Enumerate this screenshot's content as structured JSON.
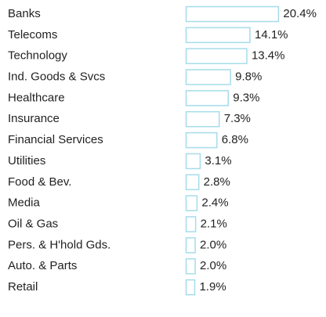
{
  "chart_data": {
    "type": "bar",
    "orientation": "horizontal",
    "color": "#a6dcea",
    "categories": [
      "Banks",
      "Telecoms",
      "Technology",
      "Ind. Goods & Svcs",
      "Healthcare",
      "Insurance",
      "Financial Services",
      "Utilities",
      "Food & Bev.",
      "Media",
      "Oil & Gas",
      "Pers. & H'hold Gds.",
      "Auto. & Parts",
      "Retail"
    ],
    "values": [
      20.4,
      14.1,
      13.4,
      9.8,
      9.3,
      7.3,
      6.8,
      3.1,
      2.8,
      2.4,
      2.1,
      2.0,
      2.0,
      1.9
    ],
    "value_labels": [
      "20.4%",
      "14.1%",
      "13.4%",
      "9.8%",
      "9.3%",
      "7.3%",
      "6.8%",
      "3.1%",
      "2.8%",
      "2.4%",
      "2.1%",
      "2.0%",
      "2.0%",
      "1.9%"
    ]
  }
}
